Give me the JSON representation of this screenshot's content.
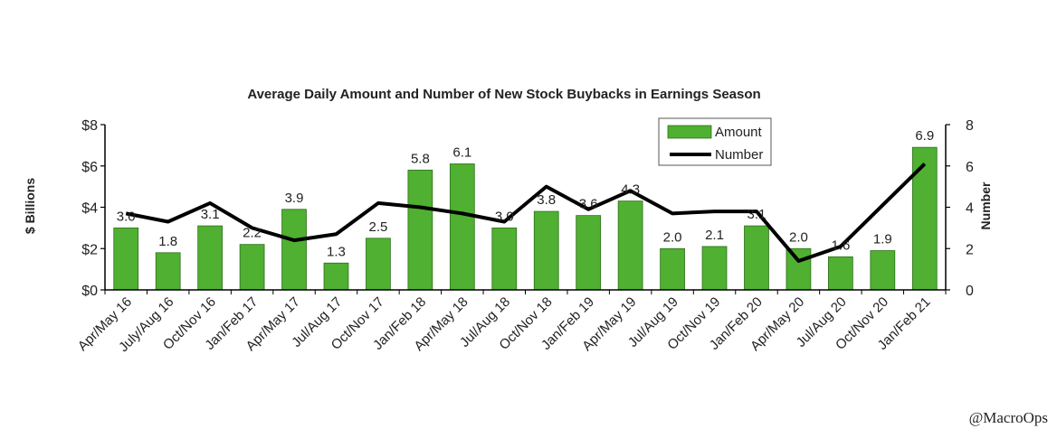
{
  "watermark": "@MacroOps",
  "chart_data": {
    "type": "bar",
    "title": "Average Daily Amount and Number of New Stock Buybacks in Earnings Season",
    "ylabel": "$ Billions",
    "y2label": "Number",
    "ylim": [
      0,
      8
    ],
    "y2lim": [
      0,
      8
    ],
    "yticks": [
      "$0",
      "$2",
      "$4",
      "$6",
      "$8"
    ],
    "y2ticks": [
      "0",
      "2",
      "4",
      "6",
      "8"
    ],
    "categories": [
      "Apr/May 16",
      "July/Aug 16",
      "Oct/Nov 16",
      "Jan/Feb 17",
      "Apr/May 17",
      "Jul/Aug 17",
      "Oct/Nov 17",
      "Jan/Feb 18",
      "Apr/May 18",
      "Jul/Aug 18",
      "Oct/Nov 18",
      "Jan/Feb 19",
      "Apr/May 19",
      "Jul/Aug 19",
      "Oct/Nov 19",
      "Jan/Feb 20",
      "Apr/May 20",
      "Jul/Aug 20",
      "Oct/Nov 20",
      "Jan/Feb 21"
    ],
    "series": [
      {
        "name": "Amount",
        "type": "bar",
        "axis": "left",
        "color": "#4fb031",
        "values": [
          3.0,
          1.8,
          3.1,
          2.2,
          3.9,
          1.3,
          2.5,
          5.8,
          6.1,
          3.0,
          3.8,
          3.6,
          4.3,
          2.0,
          2.1,
          3.1,
          2.0,
          1.6,
          1.9,
          6.9
        ],
        "labels": [
          "3.0",
          "1.8",
          "3.1",
          "2.2",
          "3.9",
          "1.3",
          "2.5",
          "5.8",
          "6.1",
          "3.0",
          "3.8",
          "3.6",
          "4.3",
          "2.0",
          "2.1",
          "3.1",
          "2.0",
          "1.6",
          "1.9",
          "6.9"
        ]
      },
      {
        "name": "Number",
        "type": "line",
        "axis": "right",
        "color": "#000000",
        "values": [
          3.7,
          3.3,
          4.2,
          3.0,
          2.4,
          2.7,
          4.2,
          4.0,
          3.7,
          3.3,
          5.0,
          3.9,
          4.8,
          3.7,
          3.8,
          3.8,
          1.4,
          2.1,
          4.1,
          6.1
        ]
      }
    ],
    "legend": {
      "position": "top-right",
      "items": [
        "Amount",
        "Number"
      ]
    },
    "grid": false
  }
}
